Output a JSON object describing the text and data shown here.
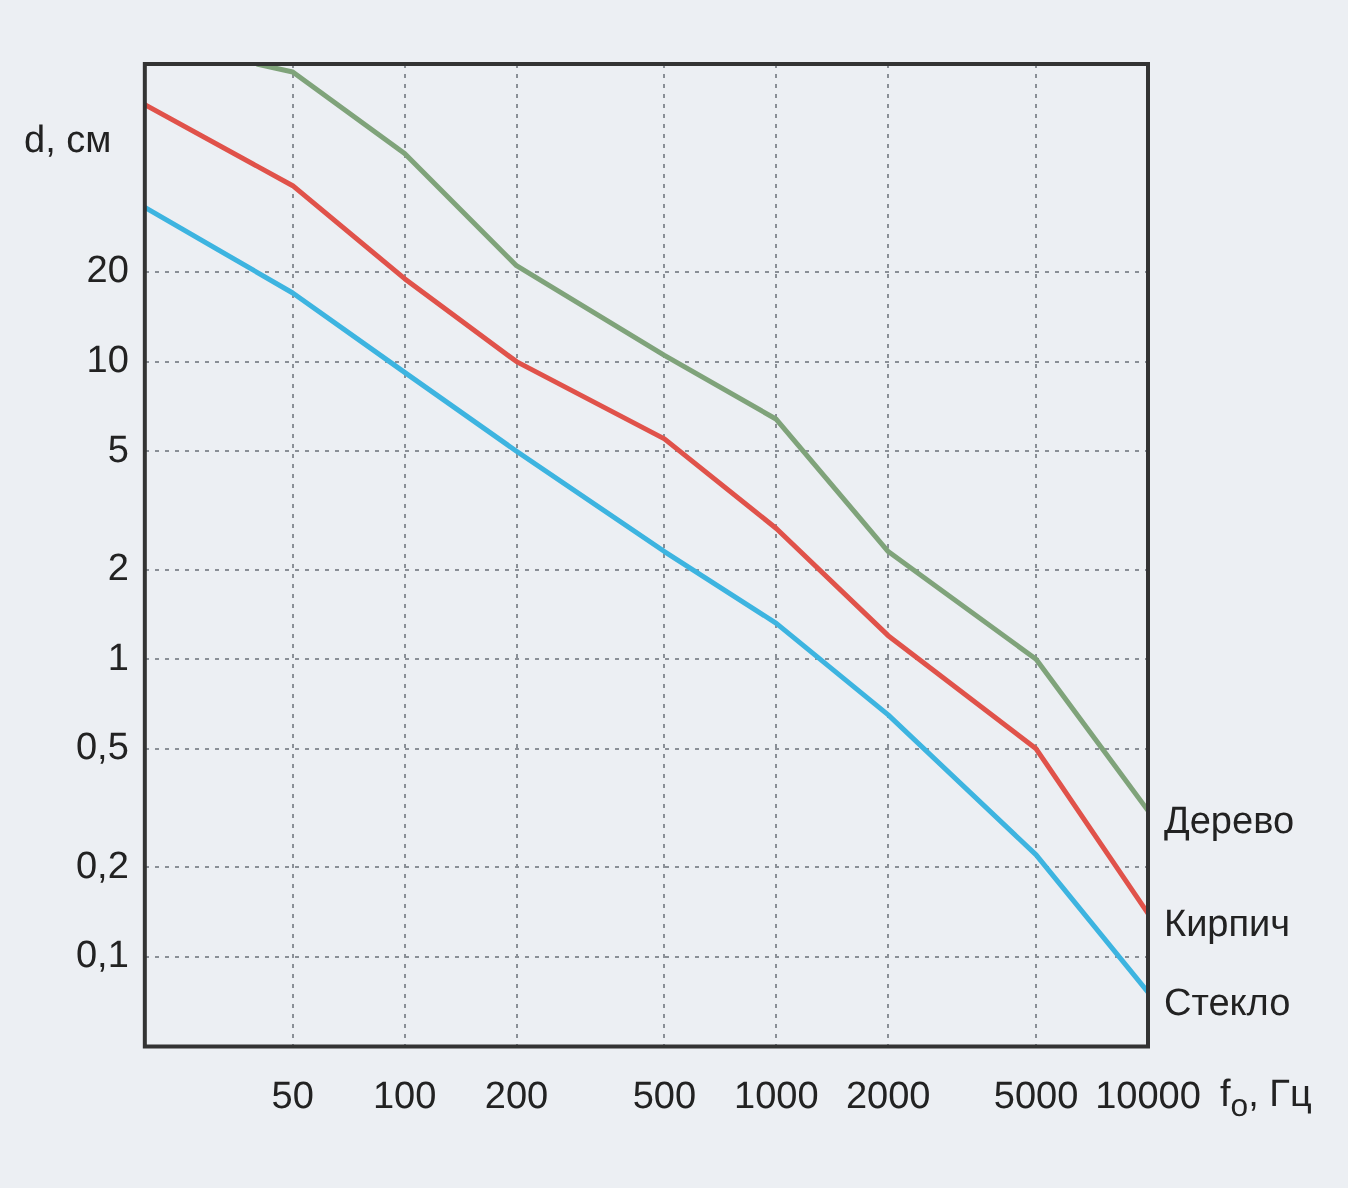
{
  "chart_data": {
    "type": "line",
    "xlabel": "f$_{o}$, Гц",
    "ylabel": "d, см",
    "log": "xy",
    "grid": true,
    "legend": false,
    "marker": "none",
    "line_style": "solid",
    "xlim": [
      20,
      10000
    ],
    "xticks": [
      50,
      100,
      200,
      500,
      1000,
      2000,
      5000,
      10000
    ],
    "ylim": [
      0.05,
      100
    ],
    "yticks": [
      {
        "value": 0.1,
        "label": "0,1"
      },
      {
        "value": 0.2,
        "label": "0,2"
      },
      {
        "value": 0.5,
        "label": "0,5"
      },
      1,
      2,
      5,
      10,
      20
    ],
    "series": [
      {
        "name": "Дерево",
        "color": "#7fa37a",
        "x": [
          40,
          50,
          100,
          200,
          500,
          1000,
          2000,
          5000,
          10000
        ],
        "values": [
          100,
          94,
          50,
          21,
          10.5,
          6.4,
          2.3,
          1,
          0.31
        ]
      },
      {
        "name": "Кирпич",
        "color": "#e0524a",
        "x": [
          20,
          50,
          100,
          200,
          500,
          1000,
          2000,
          5000,
          10000
        ],
        "values": [
          73,
          39,
          19,
          10,
          5.5,
          2.75,
          1.2,
          0.5,
          0.14
        ]
      },
      {
        "name": "Стекло",
        "color": "#3db4e0",
        "x": [
          20,
          50,
          100,
          200,
          500,
          1000,
          2000,
          5000,
          10000
        ],
        "values": [
          33,
          17,
          9.2,
          5,
          2.3,
          1.32,
          0.65,
          0.22,
          0.076
        ]
      }
    ]
  }
}
